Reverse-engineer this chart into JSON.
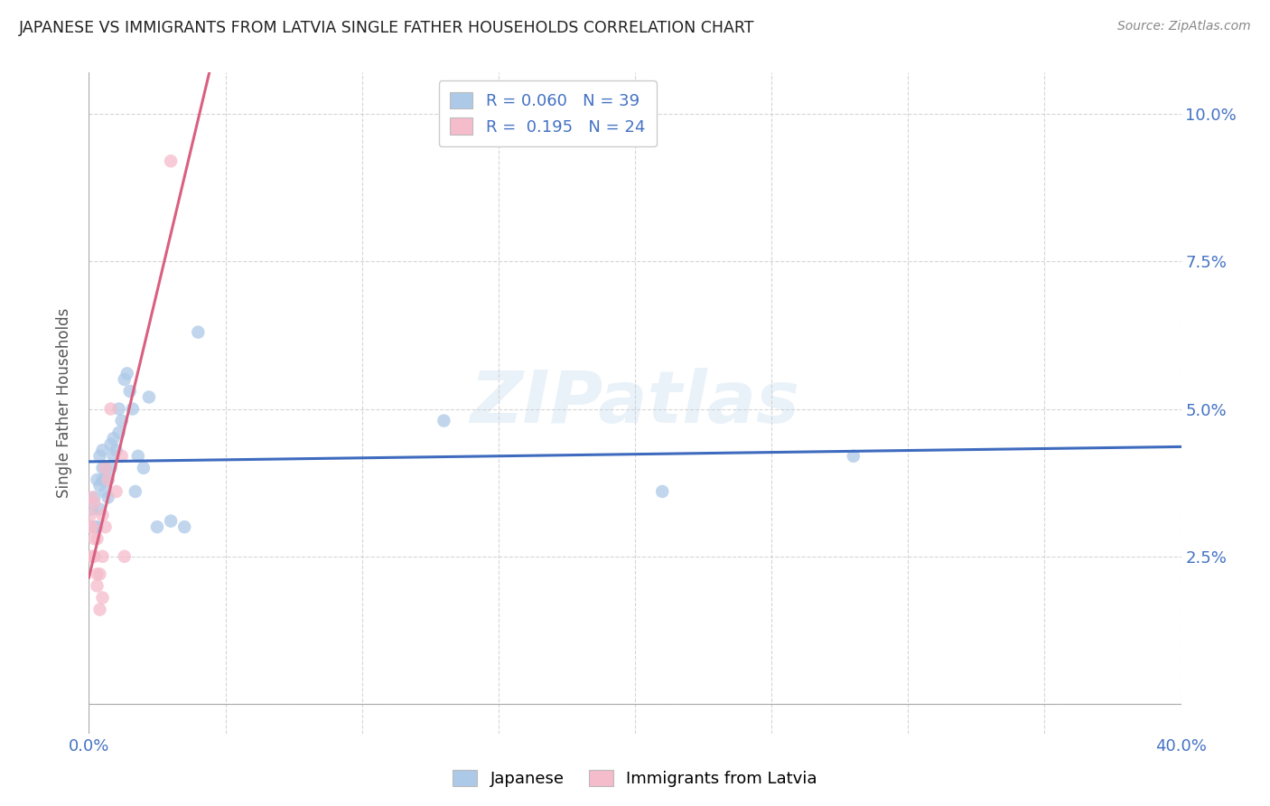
{
  "title": "JAPANESE VS IMMIGRANTS FROM LATVIA SINGLE FATHER HOUSEHOLDS CORRELATION CHART",
  "source": "Source: ZipAtlas.com",
  "ylabel": "Single Father Households",
  "xlim": [
    0.0,
    0.4
  ],
  "ylim": [
    -0.005,
    0.107
  ],
  "yticks": [
    0.0,
    0.025,
    0.05,
    0.075,
    0.1
  ],
  "ytick_labels": [
    "",
    "2.5%",
    "5.0%",
    "7.5%",
    "10.0%"
  ],
  "xticks": [
    0.0,
    0.05,
    0.1,
    0.15,
    0.2,
    0.25,
    0.3,
    0.35,
    0.4
  ],
  "xtick_labels": [
    "0.0%",
    "",
    "",
    "",
    "",
    "",
    "",
    "",
    "40.0%"
  ],
  "legend_R_japanese": "0.060",
  "legend_N_japanese": "39",
  "legend_R_latvia": "0.195",
  "legend_N_latvia": "24",
  "japanese_color": "#adc9e8",
  "latvia_color": "#f5bccb",
  "japanese_line_color": "#3f6bbf",
  "latvia_line_color": "#d96080",
  "dashed_color": "#d0a0b0",
  "watermark_text": "ZIPatlas",
  "japanese_x": [
    0.001,
    0.002,
    0.002,
    0.003,
    0.003,
    0.004,
    0.004,
    0.004,
    0.005,
    0.005,
    0.005,
    0.006,
    0.006,
    0.006,
    0.007,
    0.007,
    0.008,
    0.008,
    0.009,
    0.009,
    0.01,
    0.011,
    0.011,
    0.012,
    0.013,
    0.014,
    0.015,
    0.016,
    0.017,
    0.018,
    0.02,
    0.022,
    0.025,
    0.03,
    0.035,
    0.04,
    0.13,
    0.21,
    0.28
  ],
  "japanese_y": [
    0.033,
    0.03,
    0.035,
    0.03,
    0.038,
    0.033,
    0.037,
    0.042,
    0.038,
    0.04,
    0.043,
    0.036,
    0.04,
    0.038,
    0.038,
    0.035,
    0.04,
    0.044,
    0.042,
    0.045,
    0.043,
    0.046,
    0.05,
    0.048,
    0.055,
    0.056,
    0.053,
    0.05,
    0.036,
    0.042,
    0.04,
    0.052,
    0.03,
    0.031,
    0.03,
    0.063,
    0.048,
    0.036,
    0.042
  ],
  "latvia_x": [
    0.0005,
    0.0008,
    0.001,
    0.001,
    0.001,
    0.002,
    0.002,
    0.002,
    0.003,
    0.003,
    0.003,
    0.004,
    0.004,
    0.005,
    0.005,
    0.005,
    0.006,
    0.006,
    0.007,
    0.008,
    0.01,
    0.012,
    0.013,
    0.03
  ],
  "latvia_y": [
    0.032,
    0.03,
    0.025,
    0.03,
    0.035,
    0.025,
    0.028,
    0.034,
    0.02,
    0.022,
    0.028,
    0.016,
    0.022,
    0.025,
    0.018,
    0.032,
    0.03,
    0.04,
    0.038,
    0.05,
    0.036,
    0.042,
    0.025,
    0.092
  ],
  "latvia_solid_xlim": [
    0.0,
    0.14
  ],
  "japan_line_xlim": [
    0.0,
    0.4
  ]
}
